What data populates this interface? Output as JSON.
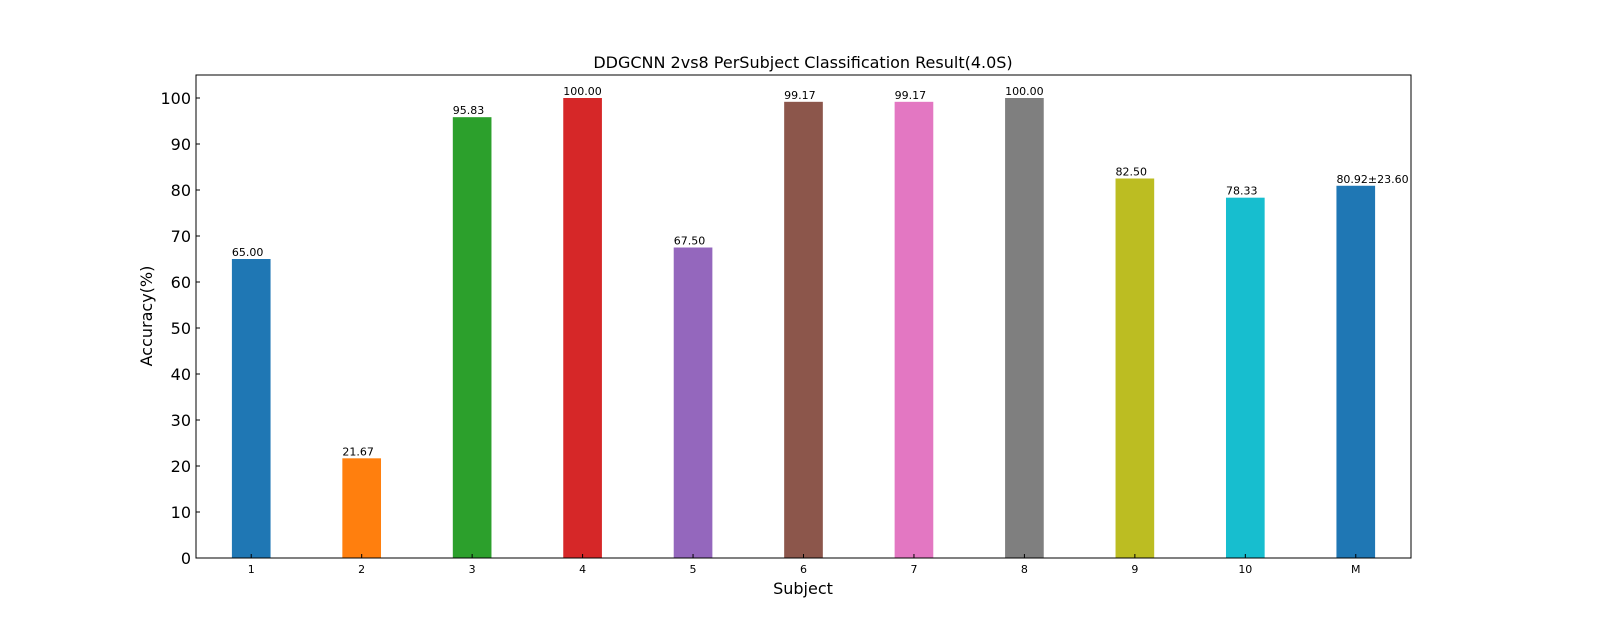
{
  "chart_data": {
    "type": "bar",
    "title": "DDGCNN 2vs8 PerSubject Classification Result(4.0S)",
    "xlabel": "Subject",
    "ylabel": "Accuracy(%)",
    "ylim": [
      0,
      105
    ],
    "yticks": [
      0,
      10,
      20,
      30,
      40,
      50,
      60,
      70,
      80,
      90,
      100
    ],
    "grid": false,
    "categories": [
      "1",
      "2",
      "3",
      "4",
      "5",
      "6",
      "7",
      "8",
      "9",
      "10",
      "M"
    ],
    "values": [
      65.0,
      21.67,
      95.83,
      100.0,
      67.5,
      99.17,
      99.17,
      100.0,
      82.5,
      78.33,
      80.92
    ],
    "data_labels": [
      "65.00",
      "21.67",
      "95.83",
      "100.00",
      "67.50",
      "99.17",
      "99.17",
      "100.00",
      "82.50",
      "78.33",
      "80.92±23.60"
    ],
    "bar_colors": [
      "#1f77b4",
      "#ff7f0e",
      "#2ca02c",
      "#d62728",
      "#9467bd",
      "#8c564b",
      "#e377c2",
      "#7f7f7f",
      "#bcbd22",
      "#17becf",
      "#1f77b4"
    ],
    "label_colors": [
      "#000000",
      "#000000",
      "#000000",
      "#000000",
      "#000000",
      "#000000",
      "#000000",
      "#000000",
      "#000000",
      "#000000",
      "#ff0000"
    ]
  }
}
